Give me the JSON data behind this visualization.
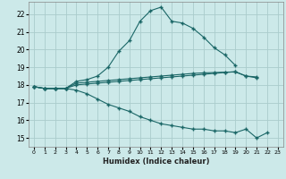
{
  "xlabel": "Humidex (Indice chaleur)",
  "xlim": [
    -0.5,
    23.5
  ],
  "ylim": [
    14.5,
    22.7
  ],
  "yticks": [
    15,
    16,
    17,
    18,
    19,
    20,
    21,
    22
  ],
  "xticks": [
    0,
    1,
    2,
    3,
    4,
    5,
    6,
    7,
    8,
    9,
    10,
    11,
    12,
    13,
    14,
    15,
    16,
    17,
    18,
    19,
    20,
    21,
    22,
    23
  ],
  "bg_color": "#cce9e9",
  "grid_color": "#aacccc",
  "line_color": "#1a6666",
  "lines": [
    {
      "x": [
        0,
        1,
        2,
        3,
        4,
        5,
        6,
        7,
        8,
        9,
        10,
        11,
        12,
        13,
        14,
        15,
        16,
        17,
        18,
        19
      ],
      "y": [
        17.9,
        17.8,
        17.8,
        17.8,
        18.2,
        18.3,
        18.5,
        19.0,
        19.9,
        20.5,
        21.6,
        22.2,
        22.4,
        21.6,
        21.5,
        21.2,
        20.7,
        20.1,
        19.7,
        19.1
      ],
      "dashed": false
    },
    {
      "x": [
        0,
        1,
        2,
        3,
        4,
        5,
        6,
        7,
        8,
        9,
        10,
        11,
        12,
        13,
        14,
        15,
        16,
        17,
        18,
        19,
        20,
        21
      ],
      "y": [
        17.9,
        17.8,
        17.8,
        17.8,
        18.1,
        18.15,
        18.2,
        18.25,
        18.3,
        18.35,
        18.4,
        18.45,
        18.5,
        18.55,
        18.6,
        18.65,
        18.68,
        18.7,
        18.72,
        18.73,
        18.5,
        18.45
      ],
      "dashed": false
    },
    {
      "x": [
        0,
        1,
        2,
        3,
        4,
        5,
        6,
        7,
        8,
        9,
        10,
        11,
        12,
        13,
        14,
        15,
        16,
        17,
        18,
        19,
        20,
        21
      ],
      "y": [
        17.9,
        17.8,
        17.8,
        17.8,
        18.0,
        18.05,
        18.1,
        18.15,
        18.2,
        18.25,
        18.3,
        18.35,
        18.4,
        18.45,
        18.5,
        18.55,
        18.6,
        18.65,
        18.7,
        18.75,
        18.5,
        18.4
      ],
      "dashed": false
    },
    {
      "x": [
        0,
        1,
        2,
        3,
        4,
        5,
        6,
        7,
        8,
        9,
        10,
        11,
        12,
        13,
        14,
        15,
        16,
        17,
        18,
        19,
        20,
        21,
        22
      ],
      "y": [
        17.9,
        17.8,
        17.8,
        17.8,
        17.7,
        17.5,
        17.2,
        16.9,
        16.7,
        16.5,
        16.2,
        16.0,
        15.8,
        15.7,
        15.6,
        15.5,
        15.5,
        15.4,
        15.4,
        15.3,
        15.5,
        15.0,
        15.3
      ],
      "dashed": false
    }
  ]
}
